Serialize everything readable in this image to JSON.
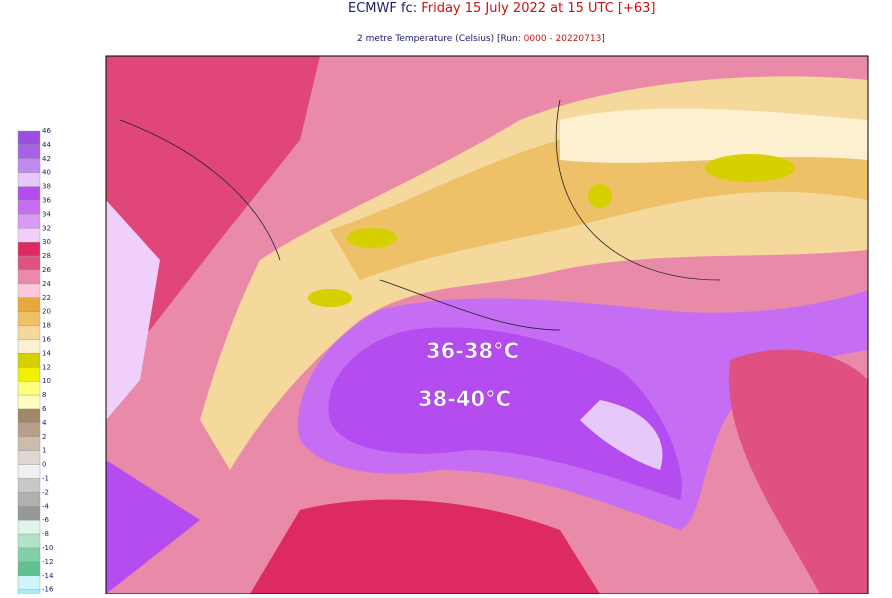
{
  "header": {
    "title_prefix": "ECMWF fc:",
    "title_date": "Friday 15 July 2022 at 15 UTC [+63]",
    "subtitle_prefix": "2 metre Temperature (Celsius) [Run:",
    "subtitle_run": "0000 - 20220713",
    "subtitle_suffix": "]"
  },
  "legend": {
    "labels": [
      "46",
      "44",
      "42",
      "40",
      "38",
      "36",
      "34",
      "32",
      "30",
      "28",
      "26",
      "24",
      "22",
      "20",
      "18",
      "16",
      "14",
      "12",
      "10",
      "8",
      "6",
      "4",
      "2",
      "1",
      "0",
      "-1",
      "-2",
      "-4",
      "-6",
      "-8",
      "-10",
      "-12",
      "-14",
      "-16"
    ],
    "colors": [
      "#9b4fdf",
      "#a860e6",
      "#c08af0",
      "#e6c8fa",
      "#b54cf0",
      "#c56ef3",
      "#d99af6",
      "#f0d0fb",
      "#dd2a62",
      "#e05080",
      "#e88aa8",
      "#fbc8dc",
      "#e8a840",
      "#eec068",
      "#f5d89c",
      "#fdf0d0",
      "#d6d000",
      "#f0f000",
      "#ffff80",
      "#ffffc0",
      "#a08868",
      "#b8a088",
      "#ccbcac",
      "#e0d8d0",
      "#f0f0f0",
      "#c8c8c8",
      "#b0b0b0",
      "#989898",
      "#e0f4e8",
      "#b0e4c8",
      "#80d0a8",
      "#60c090",
      "#d0f4fc",
      "#a0ecf8"
    ]
  },
  "annotations": [
    "36-38°C",
    "38-40°C"
  ]
}
